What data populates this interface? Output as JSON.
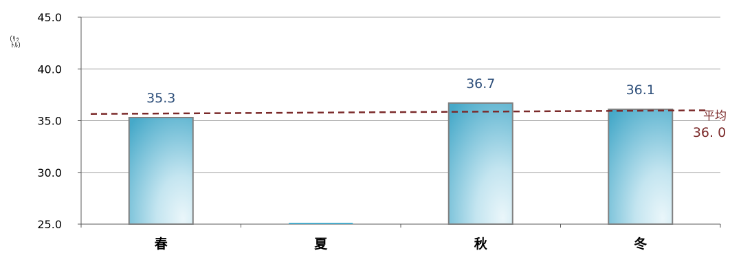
{
  "chart_data": {
    "type": "bar",
    "categories": [
      "春",
      "夏",
      "秋",
      "冬"
    ],
    "values": [
      35.3,
      25.0,
      36.7,
      36.1
    ],
    "data_labels": [
      "35.3",
      "",
      "36.7",
      "36.1"
    ],
    "y_unit_label": "（ﾘｯ\nﾄﾙ）",
    "ylim": [
      25.0,
      45.0
    ],
    "y_ticks": [
      25.0,
      30.0,
      35.0,
      40.0,
      45.0
    ],
    "y_tick_labels": [
      "25.0",
      "30.0",
      "35.0",
      "40.0",
      "45.0"
    ],
    "grid": true,
    "average": {
      "label_line1": "平均",
      "label_line2": "36. 0",
      "value_start": 35.65,
      "value_end": 36.0
    },
    "colors": {
      "bar_dark": "#4aaccc",
      "bar_light": "#dff0f6",
      "bar_border": "#808080",
      "data_label": "#2e4f7a",
      "average_line": "#7b2a2a",
      "average_label": "#7b2a2a",
      "grid": "#a6a6a6",
      "axis": "#595959",
      "text": "#000000"
    }
  }
}
